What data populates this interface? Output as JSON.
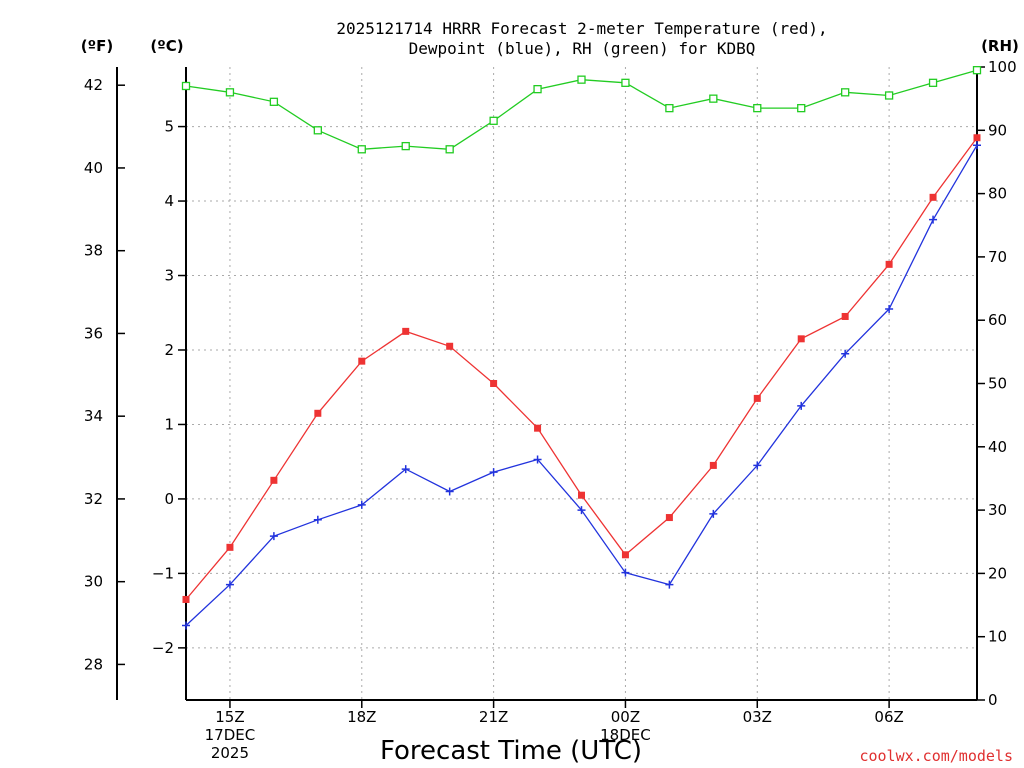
{
  "chart_data": {
    "type": "line",
    "title_line1": "2025121714 HRRR Forecast 2-meter Temperature (red),",
    "title_line2": "Dewpoint (blue), RH (green) for KDBQ",
    "xlabel": "Forecast Time (UTC)",
    "credit": "coolwx.com/models",
    "unit_labels": {
      "fahrenheit": "(ºF)",
      "celsius": "(ºC)",
      "rh": "(RH)"
    },
    "x_hours": [
      14,
      15,
      16,
      17,
      18,
      19,
      20,
      21,
      22,
      23,
      24,
      25,
      26,
      27,
      28,
      29,
      30,
      31,
      32
    ],
    "x_range": [
      14,
      32
    ],
    "celsius_range": [
      -2.7,
      5.8
    ],
    "rh_range": [
      0,
      100
    ],
    "x_ticks": [
      {
        "hour": 15,
        "lines": [
          "15Z",
          "17DEC",
          "2025"
        ]
      },
      {
        "hour": 18,
        "lines": [
          "18Z"
        ]
      },
      {
        "hour": 21,
        "lines": [
          "21Z"
        ]
      },
      {
        "hour": 24,
        "lines": [
          "00Z",
          "18DEC"
        ]
      },
      {
        "hour": 27,
        "lines": [
          "03Z"
        ]
      },
      {
        "hour": 30,
        "lines": [
          "06Z"
        ]
      }
    ],
    "celsius_ticks": [
      "-2",
      "-1",
      "0",
      "1",
      "2",
      "3",
      "4",
      "5"
    ],
    "fahrenheit_ticks": [
      "28",
      "30",
      "32",
      "34",
      "36",
      "38",
      "40",
      "42"
    ],
    "rh_ticks": [
      "0",
      "10",
      "20",
      "30",
      "40",
      "50",
      "60",
      "70",
      "80",
      "90",
      "100"
    ],
    "series": [
      {
        "name": "Temperature",
        "color": "#ee3333",
        "marker": "filled-square",
        "values": [
          -1.35,
          -0.65,
          0.25,
          1.15,
          1.85,
          2.25,
          2.05,
          1.55,
          0.95,
          0.05,
          -0.75,
          -0.25,
          0.45,
          1.35,
          2.15,
          2.45,
          3.15,
          4.05,
          4.85
        ]
      },
      {
        "name": "Dewpoint",
        "color": "#2233dd",
        "marker": "plus",
        "values": [
          -1.7,
          -1.15,
          -0.5,
          -0.28,
          -0.08,
          0.4,
          0.1,
          0.36,
          0.53,
          -0.15,
          -0.99,
          -1.15,
          -0.2,
          0.45,
          1.25,
          1.95,
          2.55,
          3.75,
          4.75
        ]
      },
      {
        "name": "RH",
        "color": "#22cc22",
        "marker": "open-square",
        "axis": "rh",
        "values": [
          97,
          96,
          94.5,
          90,
          87,
          87.5,
          87,
          91.5,
          96.5,
          98,
          97.5,
          93.5,
          95,
          93.5,
          93.5,
          96,
          95.5,
          97.5,
          99.5
        ]
      }
    ]
  }
}
